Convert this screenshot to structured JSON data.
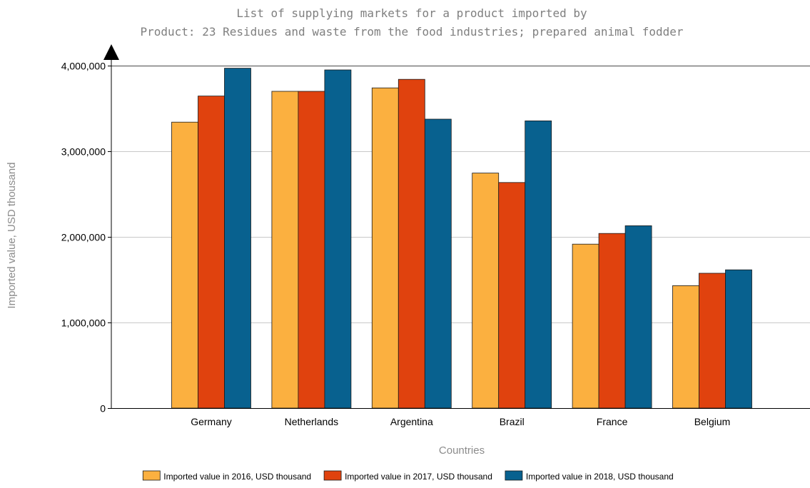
{
  "chart_data": {
    "type": "bar",
    "title": "List of supplying markets for a product imported by",
    "subtitle": "Product: 23 Residues and waste from the food industries; prepared animal fodder",
    "xlabel": "Countries",
    "ylabel": "Imported value, USD thousand",
    "categories": [
      "Germany",
      "Netherlands",
      "Argentina",
      "Brazil",
      "France",
      "Belgium"
    ],
    "series": [
      {
        "name": "Imported value in 2016, USD thousand",
        "color": "#fbb040",
        "values": [
          3340000,
          3700000,
          3740000,
          2745000,
          1915000,
          1430000
        ]
      },
      {
        "name": "Imported value in 2017, USD thousand",
        "color": "#e0420e",
        "values": [
          3645000,
          3700000,
          3840000,
          2635000,
          2040000,
          1575000
        ]
      },
      {
        "name": "Imported value in 2018, USD thousand",
        "color": "#08618f",
        "values": [
          3970000,
          3950000,
          3375000,
          3355000,
          2130000,
          1615000
        ]
      }
    ],
    "ylim": [
      0,
      4000000
    ],
    "yticks": [
      0,
      1000000,
      2000000,
      3000000,
      4000000
    ],
    "ytick_labels": [
      "0",
      "1,000,000",
      "2,000,000",
      "3,000,000",
      "4,000,000"
    ],
    "grid": true,
    "legend_position": "bottom"
  }
}
